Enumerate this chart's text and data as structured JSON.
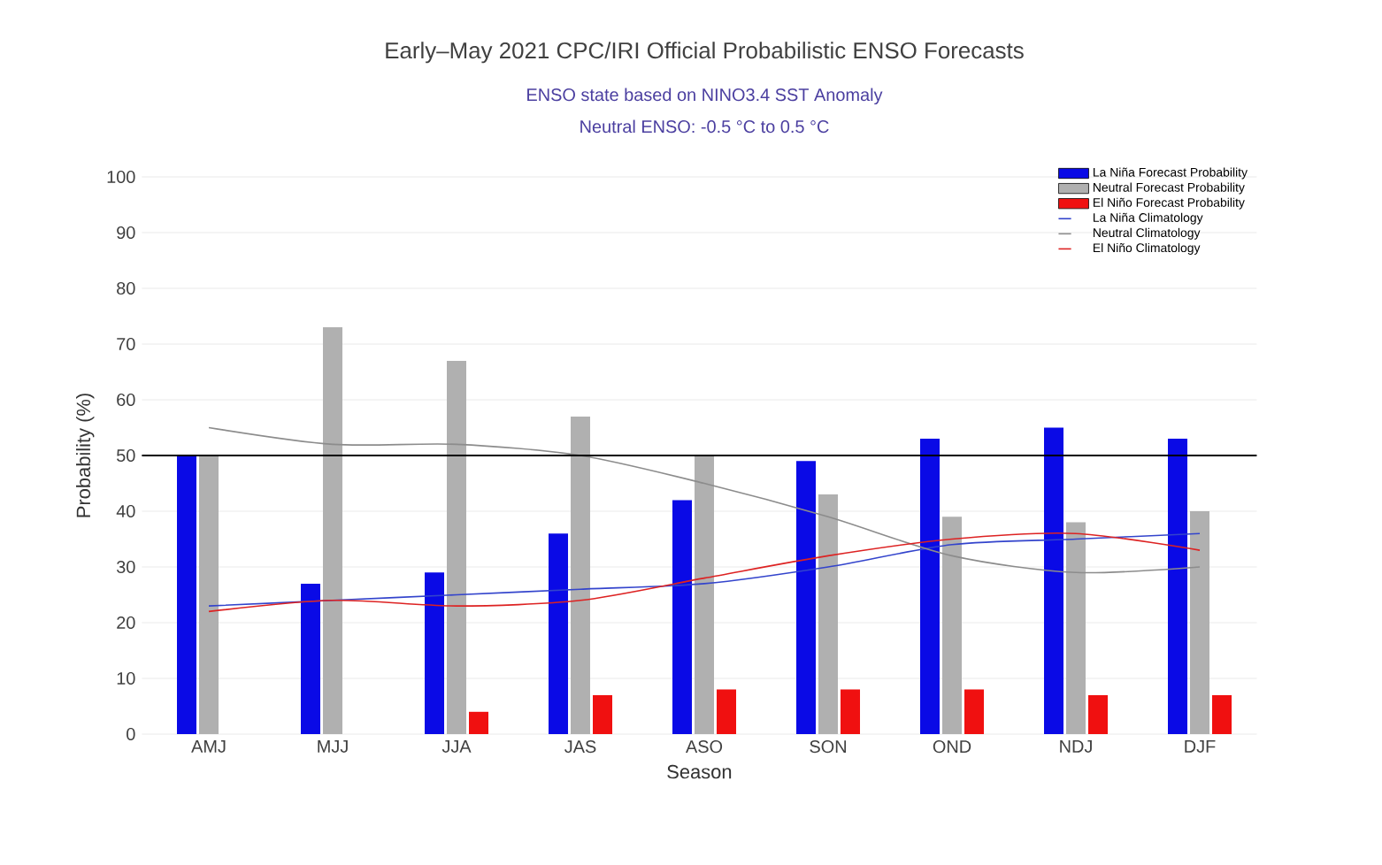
{
  "chart_data": {
    "type": "bar",
    "title": "Early–May 2021 CPC/IRI Official Probabilistic ENSO Forecasts",
    "subtitle": "ENSO state based on NINO3.4 SST Anomaly",
    "annotations": [
      "Neutral ENSO: -0.5 °C to 0.5 °C"
    ],
    "xlabel": "Season",
    "ylabel": "Probability (%)",
    "categories": [
      "AMJ",
      "MJJ",
      "JJA",
      "JAS",
      "ASO",
      "SON",
      "OND",
      "NDJ",
      "DJF"
    ],
    "series": [
      {
        "name": "La Niña Forecast Probability",
        "color": "#0a0ae6",
        "values": [
          50,
          27,
          29,
          36,
          42,
          49,
          53,
          55,
          53
        ]
      },
      {
        "name": "Neutral Forecast Probability",
        "color": "#b0b0b0",
        "values": [
          50,
          73,
          67,
          57,
          50,
          43,
          39,
          38,
          40
        ]
      },
      {
        "name": "El Niño Forecast Probability",
        "color": "#f01010",
        "values": [
          0,
          0,
          4,
          7,
          8,
          8,
          8,
          7,
          7
        ]
      },
      {
        "name": "La Niña Climatology",
        "type": "line",
        "color": "#3344cc",
        "values": [
          23,
          24,
          25,
          26,
          27,
          30,
          34,
          35,
          36
        ]
      },
      {
        "name": "Neutral Climatology",
        "type": "line",
        "color": "#8c8c8c",
        "values": [
          55,
          52,
          52,
          50,
          45,
          39,
          32,
          29,
          30
        ]
      },
      {
        "name": "El Niño Climatology",
        "type": "line",
        "color": "#dd2222",
        "values": [
          22,
          24,
          23,
          24,
          28,
          32,
          35,
          36,
          33
        ]
      }
    ],
    "ylim": [
      0,
      100
    ],
    "yticks": [
      0,
      10,
      20,
      30,
      40,
      50,
      60,
      70,
      80,
      90,
      100
    ],
    "grid": "y",
    "legend": "top right",
    "ref_lines": [
      {
        "axis": "y",
        "value": 50,
        "color": "#000000"
      }
    ]
  }
}
